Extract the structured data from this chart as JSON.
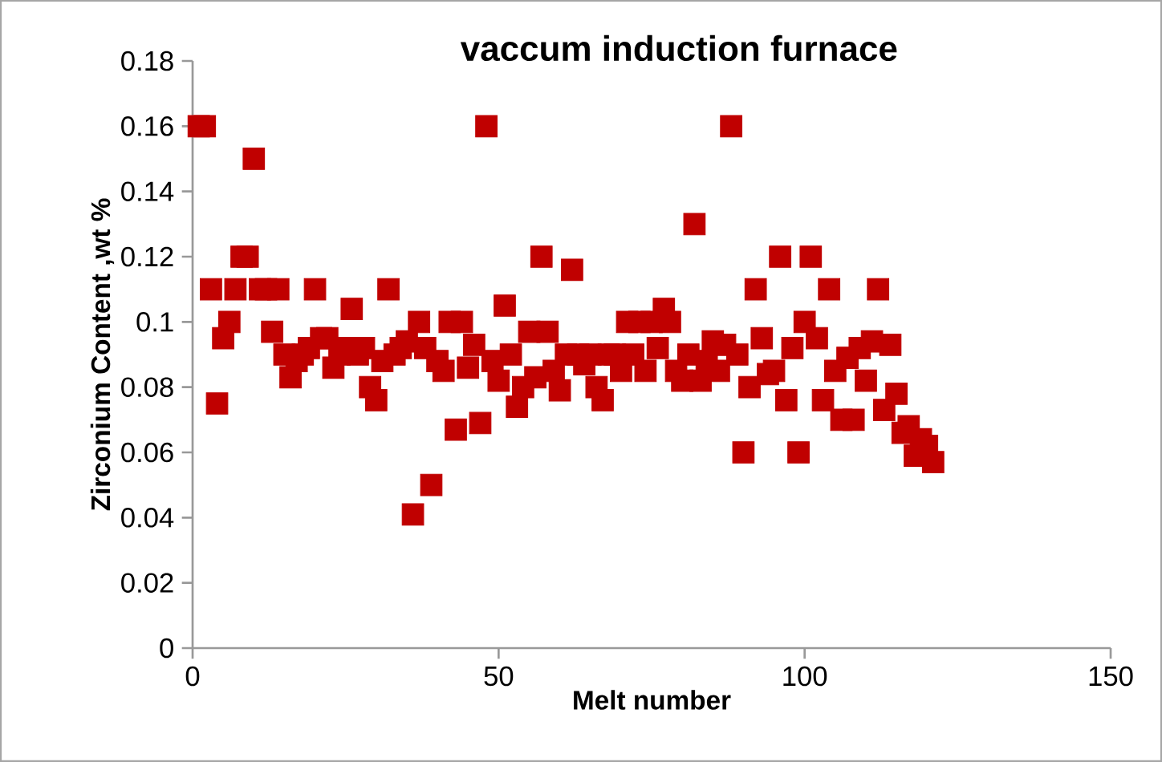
{
  "chart_data": {
    "type": "scatter",
    "title": "vaccum induction furnace",
    "xlabel": "Melt number",
    "ylabel": "Zirconium Content ,wt %",
    "x": [
      1,
      2,
      3,
      4,
      5,
      6,
      7,
      8,
      9,
      10,
      11,
      12,
      13,
      14,
      15,
      16,
      17,
      18,
      19,
      20,
      21,
      22,
      23,
      24,
      25,
      26,
      27,
      28,
      29,
      30,
      31,
      32,
      33,
      34,
      35,
      36,
      37,
      38,
      39,
      40,
      41,
      42,
      43,
      44,
      45,
      46,
      47,
      48,
      49,
      50,
      51,
      52,
      53,
      54,
      55,
      56,
      57,
      58,
      59,
      60,
      61,
      62,
      63,
      64,
      65,
      66,
      67,
      68,
      69,
      70,
      71,
      72,
      73,
      74,
      75,
      76,
      77,
      78,
      79,
      80,
      81,
      82,
      83,
      84,
      85,
      86,
      87,
      88,
      89,
      90,
      91,
      92,
      93,
      94,
      95,
      96,
      97,
      98,
      99,
      100,
      101,
      102,
      103,
      104,
      105,
      106,
      107,
      108,
      109,
      110,
      111,
      112,
      113,
      114,
      115,
      116,
      117,
      118,
      119,
      120,
      121
    ],
    "series": [
      {
        "color": "#c00000",
        "values": [
          0.16,
          0.16,
          0.11,
          0.075,
          0.095,
          0.1,
          0.11,
          0.12,
          0.12,
          0.15,
          0.11,
          0.11,
          0.097,
          0.11,
          0.09,
          0.083,
          0.088,
          0.09,
          0.092,
          0.11,
          0.095,
          0.095,
          0.086,
          0.09,
          0.092,
          0.104,
          0.09,
          0.092,
          0.08,
          0.076,
          0.088,
          0.11,
          0.09,
          0.092,
          0.094,
          0.041,
          0.1,
          0.092,
          0.05,
          0.088,
          0.085,
          0.1,
          0.067,
          0.1,
          0.086,
          0.093,
          0.069,
          0.16,
          0.088,
          0.082,
          0.105,
          0.09,
          0.074,
          0.08,
          0.097,
          0.083,
          0.12,
          0.097,
          0.085,
          0.079,
          0.09,
          0.116,
          0.09,
          0.087,
          0.09,
          0.08,
          0.076,
          0.09,
          0.09,
          0.085,
          0.1,
          0.09,
          0.1,
          0.085,
          0.1,
          0.092,
          0.104,
          0.1,
          0.085,
          0.082,
          0.09,
          0.13,
          0.082,
          0.088,
          0.094,
          0.085,
          0.093,
          0.16,
          0.09,
          0.06,
          0.08,
          0.11,
          0.095,
          0.084,
          0.085,
          0.12,
          0.076,
          0.092,
          0.06,
          0.1,
          0.12,
          0.095,
          0.076,
          0.11,
          0.085,
          0.07,
          0.089,
          0.07,
          0.092,
          0.082,
          0.094,
          0.11,
          0.073,
          0.093,
          0.078,
          0.066,
          0.068,
          0.059,
          0.064,
          0.062,
          0.057
        ]
      }
    ],
    "xlim": [
      0,
      150
    ],
    "xticks": [
      0,
      50,
      100,
      150
    ],
    "ylim": [
      0,
      0.18
    ],
    "yticks": [
      0,
      0.02,
      0.04,
      0.06,
      0.08,
      0.1,
      0.12,
      0.14,
      0.16,
      0.18
    ],
    "marker": "square",
    "grid": false
  }
}
